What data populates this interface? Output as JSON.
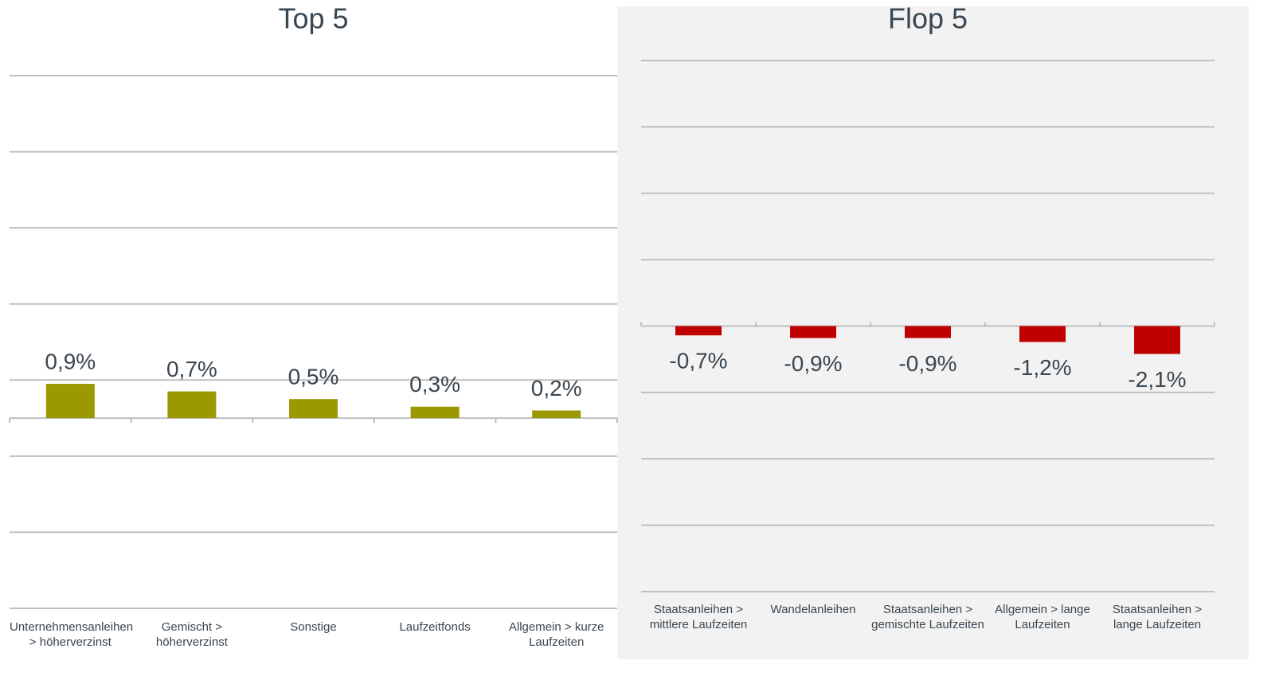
{
  "chart_data": [
    {
      "type": "bar",
      "title": "Top 5",
      "categories": [
        "Unternehmensanleihen\n> höherverzinst",
        "Gemischt >\nhöherverzinst",
        "Sonstige",
        "Laufzeitfonds",
        "Allgemein > kurze\nLaufzeiten"
      ],
      "values": [
        0.9,
        0.7,
        0.5,
        0.3,
        0.2
      ],
      "value_labels": [
        "0,9%",
        "0,7%",
        "0,5%",
        "0,3%",
        "0,2%"
      ],
      "color": "#9a9a00",
      "ylim": [
        -5,
        9
      ],
      "yticks": [
        -5,
        -3,
        -1,
        1,
        3,
        5,
        7,
        9
      ],
      "grid": true
    },
    {
      "type": "bar",
      "title": "Flop 5",
      "categories": [
        "Staatsanleihen >\nmittlere Laufzeiten",
        "Wandelanleihen",
        "Staatsanleihen >\ngemischte Laufzeiten",
        "Allgemein > lange\nLaufzeiten",
        "Staatsanleihen >\nlange Laufzeiten"
      ],
      "values": [
        -0.7,
        -0.9,
        -0.9,
        -1.2,
        -2.1
      ],
      "value_labels": [
        "-0,7%",
        "-0,9%",
        "-0,9%",
        "-1,2%",
        "-2,1%"
      ],
      "color": "#c00000",
      "ylim": [
        -20,
        20
      ],
      "yticks": [
        -20,
        -15,
        -10,
        -5,
        0,
        5,
        10,
        15,
        20
      ],
      "grid": true
    }
  ]
}
